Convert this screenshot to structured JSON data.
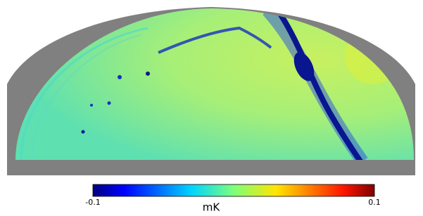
{
  "colorbar": {
    "label": "mK",
    "range": [
      -0.1,
      0.1
    ],
    "ticks": [
      -0.1,
      0.1
    ]
  }
}
